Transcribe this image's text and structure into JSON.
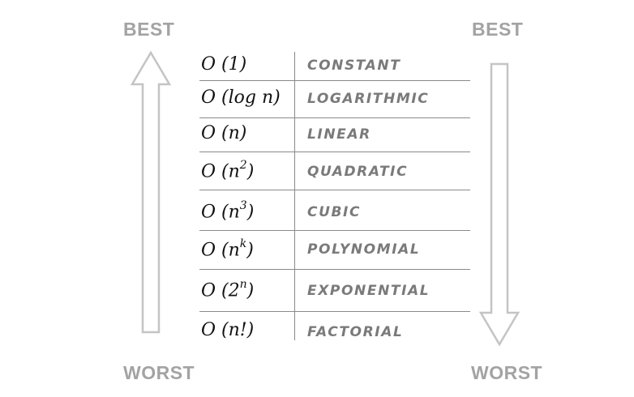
{
  "labels": {
    "best_left": "BEST",
    "best_right": "BEST",
    "worst_left": "WORST",
    "worst_right": "WORST"
  },
  "rows": [
    {
      "base": "O (1)",
      "exp": "",
      "tail": "",
      "name": "CONSTANT"
    },
    {
      "base": "O (log n)",
      "exp": "",
      "tail": "",
      "name": "LOGARITHMIC"
    },
    {
      "base": "O (n)",
      "exp": "",
      "tail": "",
      "name": "LINEAR"
    },
    {
      "base": "O (n",
      "exp": "2",
      "tail": ")",
      "name": "QUADRATIC"
    },
    {
      "base": "O (n",
      "exp": "3",
      "tail": ")",
      "name": "CUBIC"
    },
    {
      "base": "O (n",
      "exp": "k",
      "tail": ")",
      "name": "POLYNOMIAL"
    },
    {
      "base": "O (2",
      "exp": "n",
      "tail": ")",
      "name": "EXPONENTIAL"
    },
    {
      "base": "O (n!)",
      "exp": "",
      "tail": "",
      "name": "FACTORIAL"
    }
  ],
  "colors": {
    "label": "#a3a3a3",
    "arrow_stroke": "#c4c4c4",
    "rule": "#8a8a8a",
    "notation": "#111111",
    "name": "#7a7a7a"
  }
}
